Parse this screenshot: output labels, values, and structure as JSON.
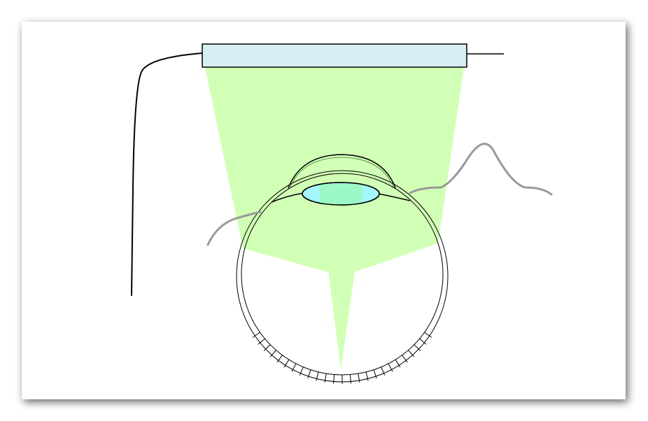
{
  "diagram": {
    "colors": {
      "background": "#ffffff",
      "card": "#ffffff",
      "card_shadow": "#8a8a8a",
      "light_cone": "#d2ffb6",
      "device_fill": "#d8edf4",
      "lens_fill": "#99f7bb",
      "outline": "#000000",
      "wire": "#000000",
      "signal_trace": "#999999"
    },
    "components": [
      {
        "id": "light-source-bar",
        "icon": "rectangle"
      },
      {
        "id": "light-cone",
        "icon": "cone"
      },
      {
        "id": "eye-globe",
        "icon": "circle"
      },
      {
        "id": "cornea",
        "icon": "arc"
      },
      {
        "id": "crystalline-lens",
        "icon": "ellipse"
      },
      {
        "id": "retina",
        "icon": "hatched-arc"
      },
      {
        "id": "signal-trace",
        "icon": "waveform"
      },
      {
        "id": "connection-wire",
        "icon": "line"
      }
    ]
  }
}
